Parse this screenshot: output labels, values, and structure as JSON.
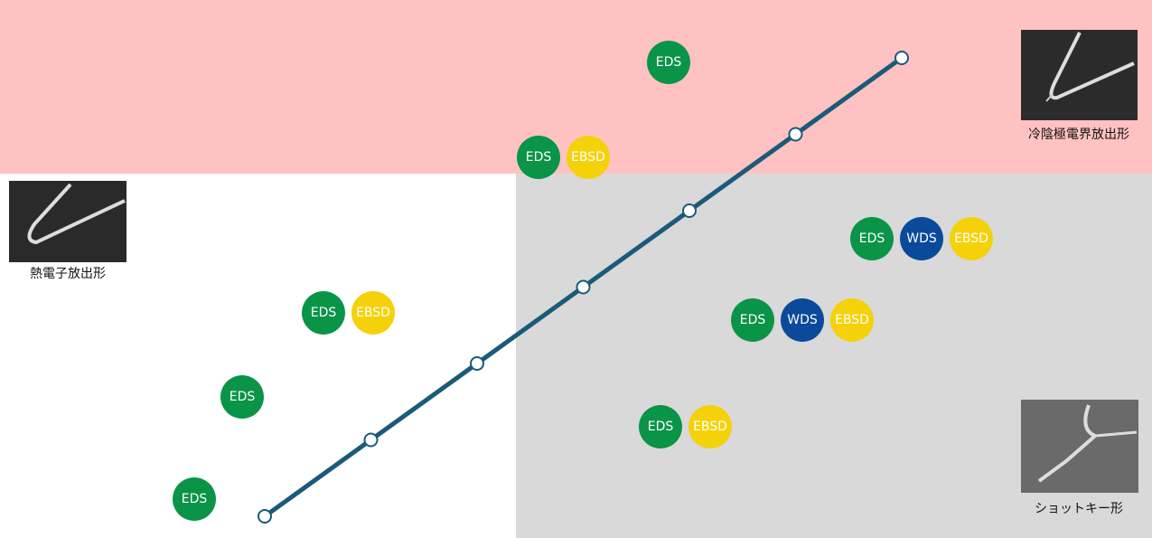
{
  "emitters": [
    {
      "label": "熱電子放出形"
    },
    {
      "label": "冷陰極電界放出形"
    },
    {
      "label": "ショットキー形"
    }
  ],
  "badge_groups": [
    {
      "badges": [
        {
          "label": "EDS",
          "color": "#0a9448"
        }
      ]
    },
    {
      "badges": [
        {
          "label": "EDS",
          "color": "#0a9448"
        },
        {
          "label": "EBSD",
          "color": "#f5d10a"
        }
      ]
    },
    {
      "badges": [
        {
          "label": "EDS",
          "color": "#0a9448"
        },
        {
          "label": "WDS",
          "color": "#0b4a9a"
        },
        {
          "label": "EBSD",
          "color": "#f5d10a"
        }
      ]
    },
    {
      "badges": [
        {
          "label": "EDS",
          "color": "#0a9448"
        },
        {
          "label": "WDS",
          "color": "#0b4a9a"
        },
        {
          "label": "EBSD",
          "color": "#f5d10a"
        }
      ]
    },
    {
      "badges": [
        {
          "label": "EDS",
          "color": "#0a9448"
        },
        {
          "label": "EBSD",
          "color": "#f5d10a"
        }
      ]
    },
    {
      "badges": [
        {
          "label": "EDS",
          "color": "#0a9448"
        },
        {
          "label": "EBSD",
          "color": "#f5d10a"
        }
      ]
    },
    {
      "badges": [
        {
          "label": "EDS",
          "color": "#0a9448"
        }
      ]
    },
    {
      "badges": [
        {
          "label": "EDS",
          "color": "#0a9448"
        }
      ]
    }
  ]
}
